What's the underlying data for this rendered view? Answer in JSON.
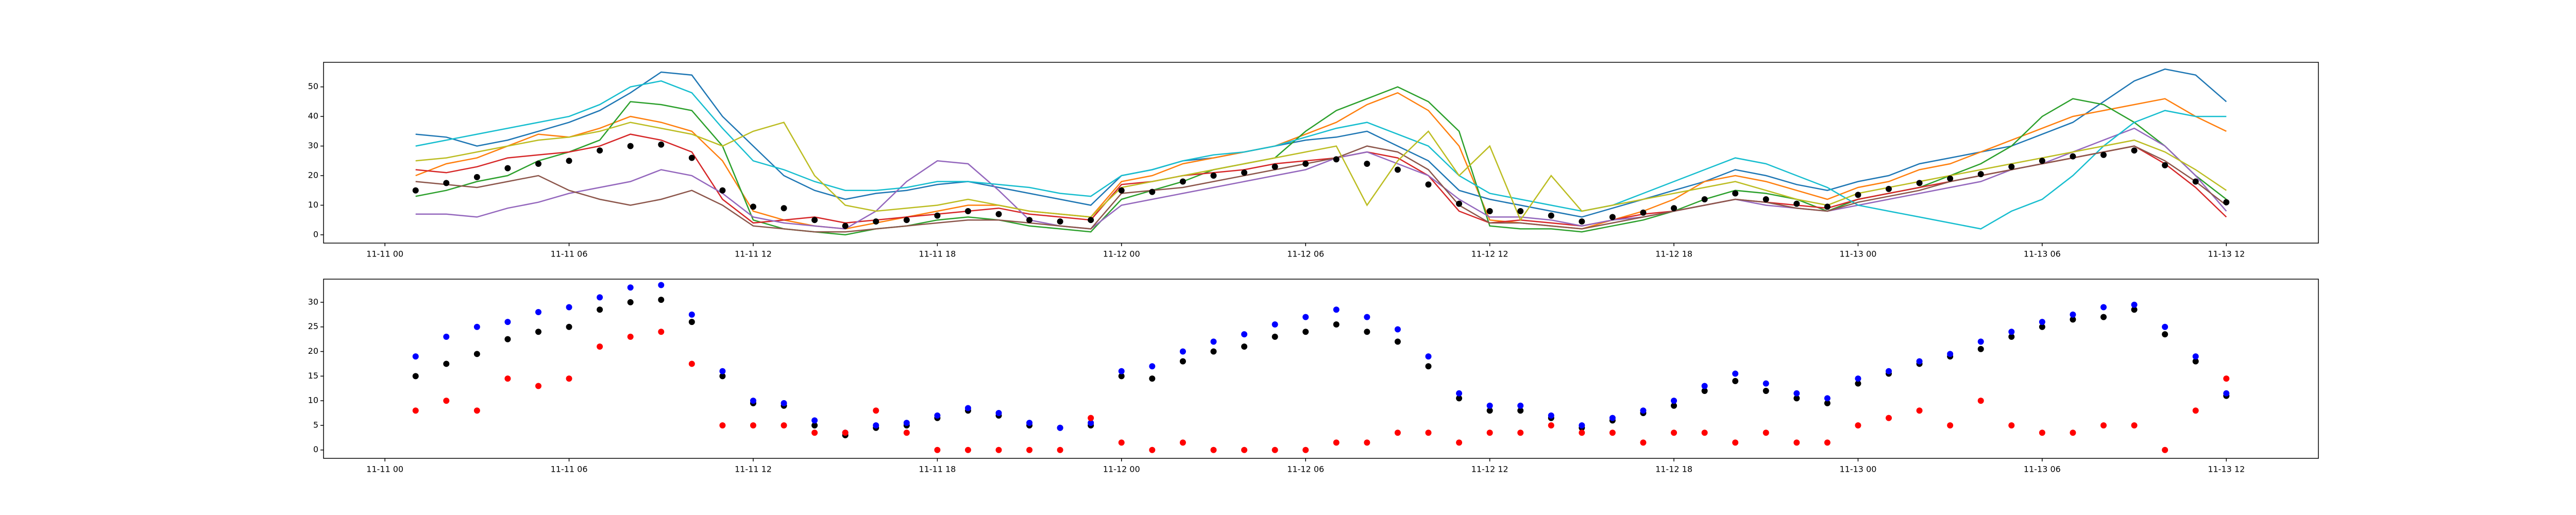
{
  "chart_data": [
    {
      "type": "line",
      "x": [
        "11-11 01",
        "11-11 02",
        "11-11 03",
        "11-11 04",
        "11-11 05",
        "11-11 06",
        "11-11 07",
        "11-11 08",
        "11-11 09",
        "11-11 10",
        "11-11 11",
        "11-11 12",
        "11-11 13",
        "11-11 14",
        "11-11 15",
        "11-11 16",
        "11-11 17",
        "11-11 18",
        "11-11 19",
        "11-11 20",
        "11-11 21",
        "11-11 22",
        "11-11 23",
        "11-12 00",
        "11-12 01",
        "11-12 02",
        "11-12 03",
        "11-12 04",
        "11-12 05",
        "11-12 06",
        "11-12 07",
        "11-12 08",
        "11-12 09",
        "11-12 10",
        "11-12 11",
        "11-12 12",
        "11-12 13",
        "11-12 14",
        "11-12 15",
        "11-12 16",
        "11-12 17",
        "11-12 18",
        "11-12 19",
        "11-12 20",
        "11-12 21",
        "11-12 22",
        "11-12 23",
        "11-13 00",
        "11-13 01",
        "11-13 02",
        "11-13 03",
        "11-13 04",
        "11-13 05",
        "11-13 06",
        "11-13 07",
        "11-13 08",
        "11-13 09",
        "11-13 10",
        "11-13 11",
        "11-13 12"
      ],
      "xlim": [
        "11-10 22",
        "11-13 15"
      ],
      "xticks": [
        "11-11 00",
        "11-11 06",
        "11-11 12",
        "11-11 18",
        "11-12 00",
        "11-12 06",
        "11-12 12",
        "11-12 18",
        "11-13 00",
        "11-13 06",
        "11-13 12"
      ],
      "ylim": [
        -2.8,
        58.3
      ],
      "yticks": [
        0,
        10,
        20,
        30,
        40,
        50
      ],
      "series": [
        {
          "color": "#1f77b4",
          "values": [
            34,
            33,
            30,
            32,
            35,
            38,
            42,
            48,
            55,
            54,
            40,
            30,
            20,
            15,
            12,
            14,
            15,
            17,
            18,
            16,
            14,
            12,
            10,
            20,
            22,
            25,
            26,
            28,
            30,
            32,
            33,
            35,
            30,
            25,
            15,
            12,
            10,
            8,
            6,
            9,
            12,
            15,
            18,
            22,
            20,
            17,
            15,
            18,
            20,
            24,
            26,
            28,
            30,
            34,
            38,
            45,
            52,
            56,
            54,
            45
          ]
        },
        {
          "color": "#ff7f0e",
          "values": [
            20,
            24,
            26,
            30,
            34,
            33,
            36,
            40,
            38,
            35,
            25,
            8,
            5,
            3,
            2,
            4,
            6,
            8,
            10,
            10,
            8,
            7,
            6,
            18,
            20,
            24,
            26,
            28,
            30,
            34,
            38,
            44,
            48,
            42,
            30,
            5,
            4,
            3,
            2,
            5,
            8,
            12,
            18,
            20,
            18,
            15,
            12,
            16,
            18,
            22,
            24,
            28,
            32,
            36,
            40,
            42,
            44,
            46,
            40,
            35
          ]
        },
        {
          "color": "#2ca02c",
          "values": [
            13,
            15,
            18,
            20,
            25,
            28,
            32,
            45,
            44,
            42,
            30,
            5,
            2,
            1,
            0,
            2,
            3,
            5,
            6,
            5,
            3,
            2,
            1,
            12,
            15,
            18,
            22,
            24,
            26,
            35,
            42,
            46,
            50,
            45,
            35,
            3,
            2,
            2,
            1,
            3,
            5,
            8,
            12,
            15,
            14,
            12,
            8,
            12,
            14,
            16,
            20,
            24,
            30,
            40,
            46,
            44,
            38,
            30,
            20,
            12
          ]
        },
        {
          "color": "#d62728",
          "values": [
            22,
            21,
            23,
            26,
            27,
            28,
            30,
            34,
            32,
            28,
            12,
            4,
            5,
            6,
            4,
            5,
            6,
            7,
            8,
            9,
            7,
            6,
            5,
            17,
            18,
            20,
            21,
            22,
            24,
            25,
            26,
            28,
            26,
            20,
            8,
            4,
            5,
            4,
            3,
            5,
            7,
            8,
            10,
            12,
            11,
            10,
            9,
            12,
            14,
            16,
            18,
            20,
            22,
            24,
            26,
            28,
            30,
            24,
            16,
            6
          ]
        },
        {
          "color": "#9467bd",
          "values": [
            7,
            7,
            6,
            9,
            11,
            14,
            16,
            18,
            22,
            20,
            14,
            6,
            4,
            3,
            2,
            8,
            18,
            25,
            24,
            15,
            5,
            3,
            2,
            10,
            12,
            14,
            16,
            18,
            20,
            22,
            26,
            28,
            24,
            20,
            12,
            6,
            6,
            5,
            3,
            5,
            6,
            8,
            10,
            12,
            10,
            9,
            8,
            10,
            12,
            14,
            16,
            18,
            22,
            24,
            28,
            32,
            36,
            30,
            20,
            8
          ]
        },
        {
          "color": "#17becf",
          "values": [
            30,
            32,
            34,
            36,
            38,
            40,
            44,
            50,
            52,
            48,
            36,
            25,
            22,
            18,
            15,
            15,
            16,
            18,
            18,
            17,
            16,
            14,
            13,
            20,
            22,
            25,
            27,
            28,
            30,
            33,
            36,
            38,
            34,
            30,
            20,
            14,
            12,
            10,
            8,
            10,
            14,
            18,
            22,
            26,
            24,
            20,
            16,
            10,
            8,
            6,
            4,
            2,
            8,
            12,
            20,
            30,
            38,
            42,
            40,
            40
          ]
        },
        {
          "color": "#8c564b",
          "values": [
            18,
            17,
            16,
            18,
            20,
            15,
            12,
            10,
            12,
            15,
            10,
            3,
            2,
            1,
            1,
            2,
            3,
            4,
            5,
            5,
            4,
            3,
            2,
            14,
            15,
            16,
            18,
            20,
            22,
            24,
            26,
            30,
            28,
            22,
            10,
            4,
            4,
            3,
            2,
            4,
            6,
            8,
            10,
            12,
            11,
            9,
            8,
            11,
            13,
            15,
            18,
            20,
            22,
            24,
            26,
            28,
            30,
            25,
            18,
            10
          ]
        },
        {
          "color": "#bcbd22",
          "values": [
            25,
            26,
            28,
            30,
            32,
            33,
            35,
            38,
            36,
            34,
            30,
            35,
            38,
            20,
            10,
            8,
            9,
            10,
            12,
            10,
            8,
            7,
            6,
            16,
            18,
            20,
            22,
            24,
            26,
            28,
            30,
            10,
            25,
            35,
            20,
            30,
            5,
            20,
            8,
            10,
            12,
            14,
            16,
            18,
            15,
            12,
            10,
            14,
            16,
            18,
            20,
            22,
            24,
            26,
            28,
            30,
            32,
            28,
            22,
            15
          ]
        },
        {
          "color": "#000000",
          "kind": "scatter",
          "values": [
            15,
            17.5,
            19.5,
            22.5,
            24,
            25,
            28.5,
            30,
            30.5,
            26,
            15,
            9.5,
            9,
            5,
            3,
            4.5,
            5,
            6.5,
            8,
            7,
            5,
            4.5,
            5,
            15,
            14.5,
            18,
            20,
            21,
            23,
            24,
            25.5,
            24,
            22,
            17,
            10.5,
            8,
            8,
            6.5,
            4.5,
            6,
            7.5,
            9,
            12,
            14,
            12,
            10.5,
            9.5,
            13.5,
            15.5,
            17.5,
            19,
            20.5,
            23,
            25,
            26.5,
            27,
            28.5,
            23.5,
            18,
            11
          ]
        }
      ]
    },
    {
      "type": "scatter",
      "x": [
        "11-11 01",
        "11-11 02",
        "11-11 03",
        "11-11 04",
        "11-11 05",
        "11-11 06",
        "11-11 07",
        "11-11 08",
        "11-11 09",
        "11-11 10",
        "11-11 11",
        "11-11 12",
        "11-11 13",
        "11-11 14",
        "11-11 15",
        "11-11 16",
        "11-11 17",
        "11-11 18",
        "11-11 19",
        "11-11 20",
        "11-11 21",
        "11-11 22",
        "11-11 23",
        "11-12 00",
        "11-12 01",
        "11-12 02",
        "11-12 03",
        "11-12 04",
        "11-12 05",
        "11-12 06",
        "11-12 07",
        "11-12 08",
        "11-12 09",
        "11-12 10",
        "11-12 11",
        "11-12 12",
        "11-12 13",
        "11-12 14",
        "11-12 15",
        "11-12 16",
        "11-12 17",
        "11-12 18",
        "11-12 19",
        "11-12 20",
        "11-12 21",
        "11-12 22",
        "11-12 23",
        "11-13 00",
        "11-13 01",
        "11-13 02",
        "11-13 03",
        "11-13 04",
        "11-13 05",
        "11-13 06",
        "11-13 07",
        "11-13 08",
        "11-13 09",
        "11-13 10",
        "11-13 11",
        "11-13 12"
      ],
      "xlim": [
        "11-10 22",
        "11-13 15"
      ],
      "xticks": [
        "11-11 00",
        "11-11 06",
        "11-11 12",
        "11-11 18",
        "11-12 00",
        "11-12 06",
        "11-12 12",
        "11-12 18",
        "11-13 00",
        "11-13 06",
        "11-13 12"
      ],
      "ylim": [
        -1.7,
        34.7
      ],
      "yticks": [
        0,
        5,
        10,
        15,
        20,
        25,
        30
      ],
      "series": [
        {
          "color": "#000000",
          "values": [
            15,
            17.5,
            19.5,
            22.5,
            24,
            25,
            28.5,
            30,
            30.5,
            26,
            15,
            9.5,
            9,
            5,
            3,
            4.5,
            5,
            6.5,
            8,
            7,
            5,
            4.5,
            5,
            15,
            14.5,
            18,
            20,
            21,
            23,
            24,
            25.5,
            24,
            22,
            17,
            10.5,
            8,
            8,
            6.5,
            4.5,
            6,
            7.5,
            9,
            12,
            14,
            12,
            10.5,
            9.5,
            13.5,
            15.5,
            17.5,
            19,
            20.5,
            23,
            25,
            26.5,
            27,
            28.5,
            23.5,
            18,
            11
          ]
        },
        {
          "color": "#0000ff",
          "values": [
            19,
            23,
            25,
            26,
            28,
            29,
            31,
            33,
            33.5,
            27.5,
            16,
            10,
            9.5,
            6,
            3.5,
            5,
            5.5,
            7,
            8.5,
            7.5,
            5.5,
            4.5,
            5.5,
            16,
            17,
            20,
            22,
            23.5,
            25.5,
            27,
            28.5,
            27,
            24.5,
            19,
            11.5,
            9,
            9,
            7,
            5,
            6.5,
            8,
            10,
            13,
            15.5,
            13.5,
            11.5,
            10.5,
            14.5,
            16,
            18,
            19.5,
            22,
            24,
            26,
            27.5,
            29,
            29.5,
            25,
            19,
            11.5
          ]
        },
        {
          "color": "#ff0000",
          "values": [
            8,
            10,
            8,
            14.5,
            13,
            14.5,
            21,
            23,
            24,
            17.5,
            5,
            5,
            5,
            3.5,
            3.5,
            8,
            3.5,
            0,
            0,
            0,
            0,
            0,
            6.5,
            1.5,
            0,
            1.5,
            0,
            0,
            0,
            0,
            1.5,
            1.5,
            3.5,
            3.5,
            1.5,
            3.5,
            3.5,
            5,
            3.5,
            3.5,
            1.5,
            3.5,
            3.5,
            1.5,
            3.5,
            1.5,
            1.5,
            5,
            6.5,
            8,
            5,
            10,
            5,
            3.5,
            3.5,
            5,
            5,
            0,
            8,
            14.5
          ]
        }
      ]
    }
  ]
}
